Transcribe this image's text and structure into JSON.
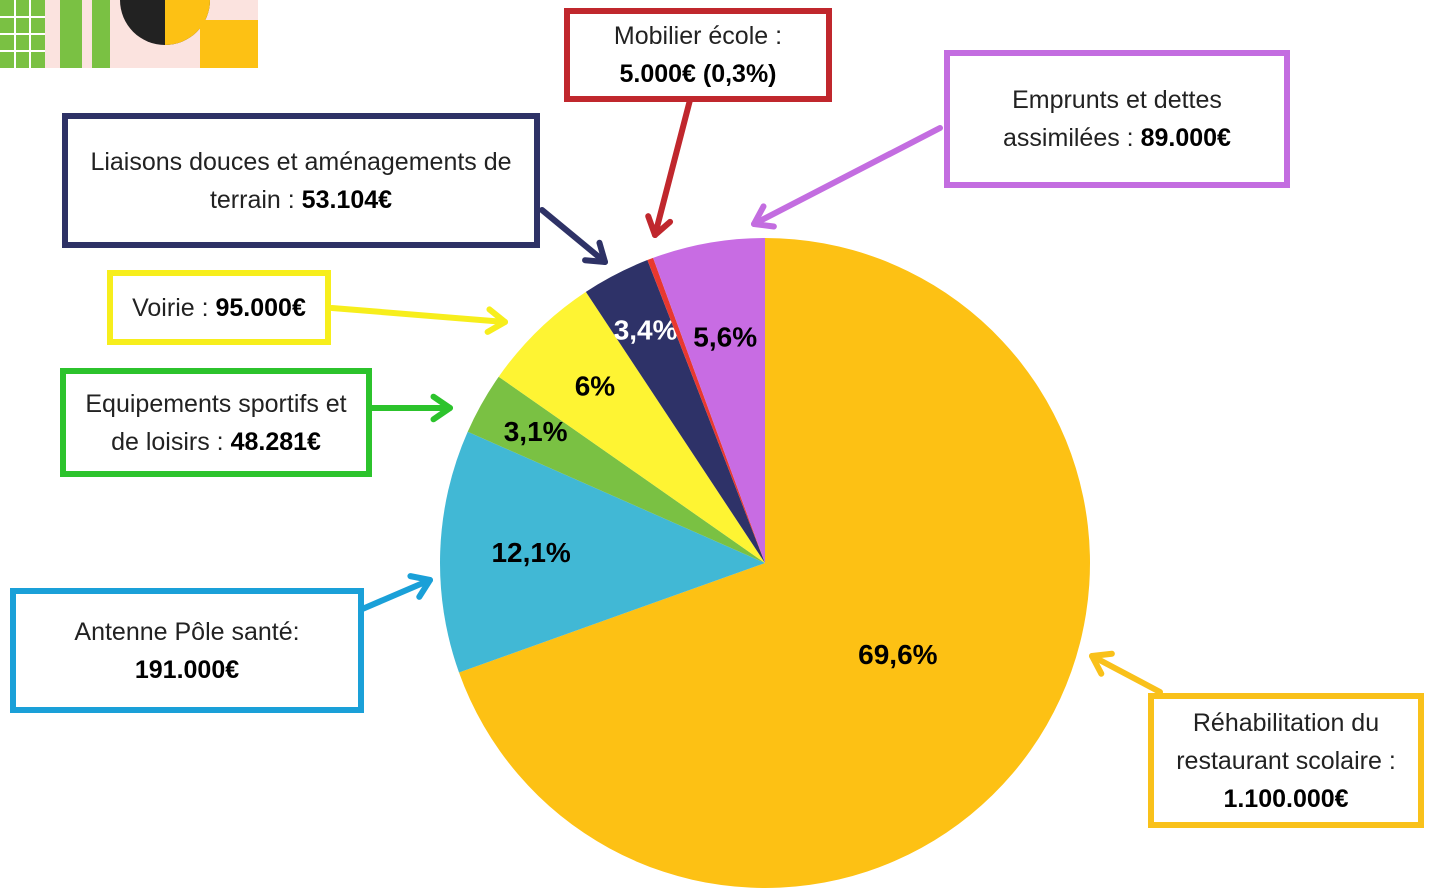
{
  "chart_data": {
    "type": "pie",
    "categories": [
      "Réhabilitation du restaurant scolaire :",
      "Antenne Pôle santé:",
      "Equipements sportifs et de loisirs :",
      "Voirie :",
      "Liaisons douces et aménagements de terrain :",
      "Mobilier école :",
      "Emprunts et dettes assimilées :"
    ],
    "amounts": [
      "1.100.000€",
      "191.000€",
      "48.281€",
      "95.000€",
      "53.104€",
      "5.000€ (0,3%)",
      "89.000€"
    ],
    "values": [
      69.6,
      12.1,
      3.1,
      6,
      3.4,
      0.3,
      5.6
    ],
    "value_labels": [
      "69,6%",
      "12,1%",
      "3,1%",
      "6%",
      "3,4%",
      null,
      "5,6%"
    ],
    "colors": [
      "#fdc114",
      "#41b8d5",
      "#7ac143",
      "#fef433",
      "#2e3268",
      "#e8382f",
      "#c86ce3"
    ],
    "border_colors": [
      "#f9c11a",
      "#1aa0d8",
      "#2cc32c",
      "#f7ee1c",
      "#2e3266",
      "#c0272d",
      "#c36de0"
    ]
  }
}
